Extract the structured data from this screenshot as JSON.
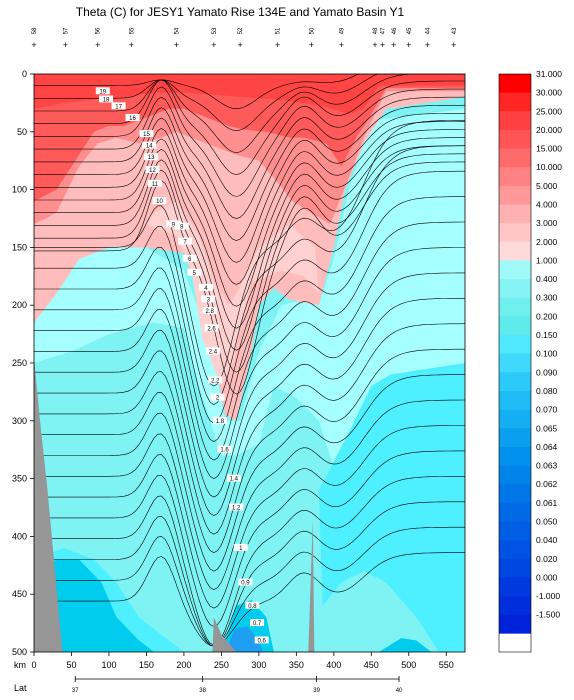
{
  "chart_data": {
    "type": "contour",
    "title": "Theta (C) for JESY1 Yamato Rise 134E and Yamato Basin Y1",
    "x_unit_label": "km",
    "x_secondary_label": "Lat",
    "xlim": [
      0,
      575
    ],
    "ylim": [
      500,
      0
    ],
    "x_ticks": [
      0,
      50,
      100,
      150,
      200,
      250,
      300,
      350,
      400,
      450,
      500,
      550
    ],
    "y_ticks": [
      0,
      50,
      100,
      150,
      200,
      250,
      300,
      350,
      400,
      450,
      500
    ],
    "lat_ticks": [
      {
        "label": "37",
        "km": 55
      },
      {
        "label": "38",
        "km": 225
      },
      {
        "label": "39",
        "km": 377
      },
      {
        "label": "40",
        "km": 487
      }
    ],
    "stations_km": [
      0,
      42,
      85,
      130,
      190,
      240,
      275,
      325,
      370,
      410,
      455,
      465,
      480,
      500,
      525,
      560
    ],
    "station_labels": [
      "58",
      "57",
      "56",
      "55",
      "54",
      "53",
      "52",
      "51",
      "50",
      "49",
      "48",
      "47",
      "46",
      "45",
      "44",
      "43"
    ],
    "colorbar_levels": [
      "31.000",
      "30.000",
      "25.000",
      "20.000",
      "15.000",
      "10.000",
      "5.000",
      "4.000",
      "3.000",
      "2.000",
      "1.000",
      "0.400",
      "0.300",
      "0.200",
      "0.150",
      "0.100",
      "0.090",
      "0.080",
      "0.070",
      "0.065",
      "0.064",
      "0.063",
      "0.062",
      "0.061",
      "0.050",
      "0.040",
      "0.020",
      "0.000",
      "-1.000",
      "-1.500"
    ],
    "contour_labels": [
      "19",
      "18",
      "17",
      "16",
      "15",
      "14",
      "13",
      "12",
      "11",
      "10",
      "9",
      "8",
      "7",
      "6",
      "5",
      "4",
      "3",
      "2.8",
      "2.6",
      "2.4",
      "2.2",
      "2",
      "1.8",
      "1.6",
      "1.4",
      "1.2",
      "1",
      "0.9",
      "0.8",
      "0.7",
      "0.6"
    ],
    "series": [
      {
        "name": "warm",
        "color": "#ff5a5a"
      },
      {
        "name": "pink",
        "color": "#ffbcbc"
      },
      {
        "name": "cyan",
        "color": "#7ff3f3"
      },
      {
        "name": "deep",
        "color": "#00ccee"
      }
    ],
    "colors": {
      "warm": "#ff5a5a",
      "warmDark": "#ff4444",
      "salmon": "#ff8f8f",
      "pink": "#ffbcbc",
      "palePink": "#ffd0d0",
      "paleCyan": "#a6ffff",
      "cyan": "#7ff3f3",
      "aqua": "#4ef0ff",
      "deep": "#00ccee",
      "deepBlue": "#1e9ef0",
      "topo": "#969696"
    }
  }
}
